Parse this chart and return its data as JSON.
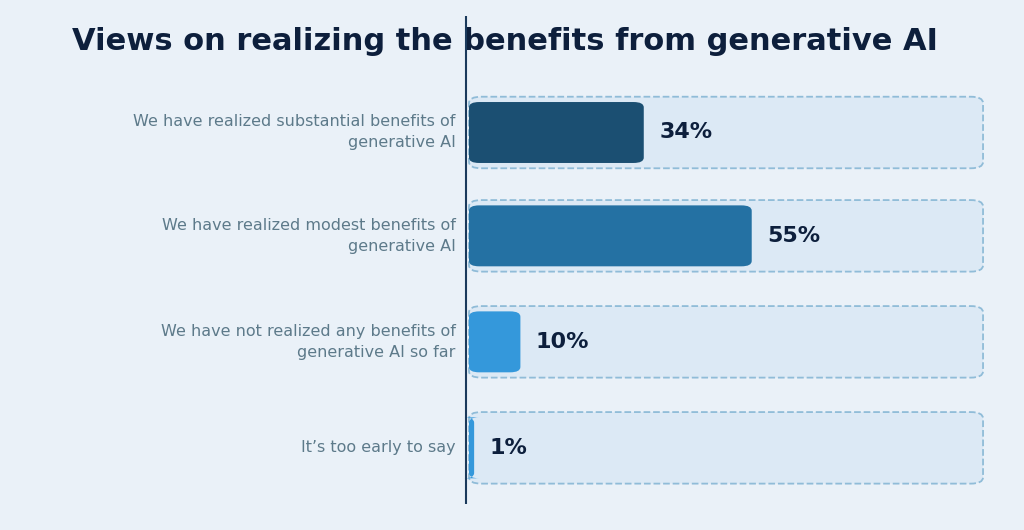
{
  "title": "Views on realizing the benefits from generative AI",
  "background_color": "#eaf1f8",
  "categories": [
    "We have realized substantial benefits of\ngenerative AI",
    "We have realized modest benefits of\ngenerative AI",
    "We have not realized any benefits of\ngenerative AI so far",
    "It’s too early to say"
  ],
  "values": [
    34,
    55,
    10,
    1
  ],
  "bar_colors": [
    "#1b4f72",
    "#2471a3",
    "#3498db",
    "#3498db"
  ],
  "value_labels": [
    "34%",
    "55%",
    "10%",
    "1%"
  ],
  "title_color": "#0d1f3c",
  "label_color": "#5d7a8a",
  "value_color": "#0d1f3c",
  "container_facecolor": "#dce9f5",
  "container_edgecolor": "#90bcd8",
  "divline_color": "#1b3a5c",
  "title_fontsize": 22,
  "label_fontsize": 11.5,
  "value_fontsize": 16
}
